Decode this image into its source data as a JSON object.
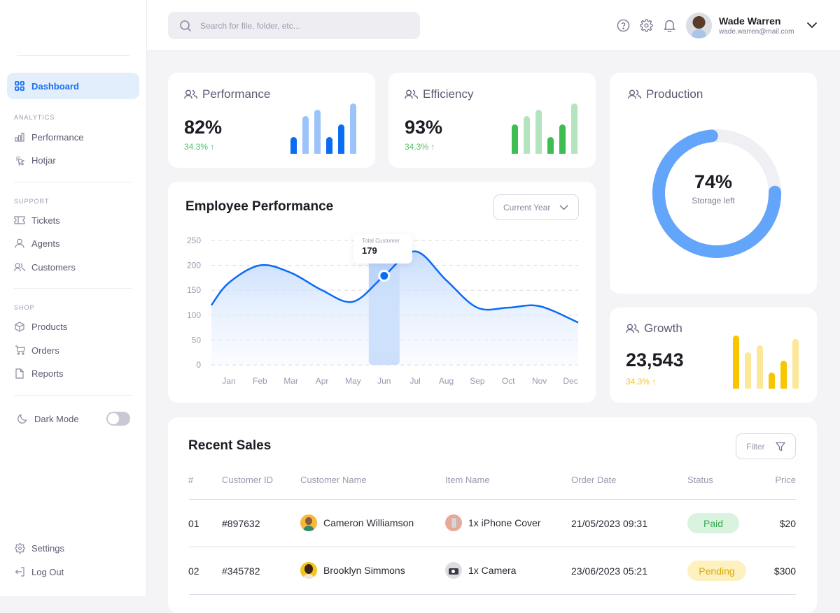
{
  "sidebar": {
    "active": {
      "label": "Dashboard",
      "icon": "grid-icon"
    },
    "sections": {
      "analytics": "ANALYTICS",
      "support": "SUPPORT",
      "shop": "SHOP"
    },
    "analytics_items": [
      {
        "label": "Performance",
        "icon": "bar-chart-icon"
      },
      {
        "label": "Hotjar",
        "icon": "cursor-click-icon"
      }
    ],
    "support_items": [
      {
        "label": "Tickets",
        "icon": "ticket-icon"
      },
      {
        "label": "Agents",
        "icon": "user-icon"
      },
      {
        "label": "Customers",
        "icon": "users-icon"
      }
    ],
    "shop_items": [
      {
        "label": "Products",
        "icon": "box-icon"
      },
      {
        "label": "Orders",
        "icon": "cart-icon"
      },
      {
        "label": "Reports",
        "icon": "file-icon"
      }
    ],
    "dark_mode": {
      "label": "Dark Mode",
      "enabled": false
    },
    "bottom_items": [
      {
        "label": "Settings",
        "icon": "gear-icon"
      },
      {
        "label": "Log Out",
        "icon": "logout-icon"
      }
    ]
  },
  "topbar": {
    "search_placeholder": "Search for file, folder, etc...",
    "user": {
      "name": "Wade Warren",
      "email": "wade.warren@mail.com"
    }
  },
  "cards": {
    "performance": {
      "title": "Performance",
      "value": "82%",
      "delta": "34.3% ↑",
      "bars": [
        0.33,
        0.75,
        0.87,
        0.33,
        0.58,
        1.0
      ],
      "colors": [
        "#0a6cf5",
        "#9cc4fb"
      ]
    },
    "efficiency": {
      "title": "Efficiency",
      "value": "93%",
      "delta": "34.3% ↑",
      "bars": [
        0.58,
        0.75,
        0.87,
        0.33,
        0.58,
        1.0
      ],
      "colors": [
        "#3fbd55",
        "#b3e4bd"
      ]
    },
    "production": {
      "title": "Production",
      "value": "74%",
      "subtitle": "Storage left",
      "progress_percent": 74
    },
    "growth": {
      "title": "Growth",
      "value": "23,543",
      "delta": "34.3% ↑",
      "bars": [
        1.0,
        0.69,
        0.82,
        0.3,
        0.52,
        0.93
      ],
      "colors": [
        "#f7c600",
        "#fde89a"
      ]
    }
  },
  "employee_performance": {
    "title": "Employee Performance",
    "period_select": "Current Year",
    "tooltip": {
      "label": "Total Customer",
      "value": "179"
    }
  },
  "chart_data": {
    "type": "area",
    "title": "Employee Performance",
    "xlabel": "",
    "ylabel": "",
    "categories": [
      "Jan",
      "Feb",
      "Mar",
      "Apr",
      "May",
      "Jun",
      "Jul",
      "Aug",
      "Sep",
      "Oct",
      "Nov",
      "Dec"
    ],
    "series": [
      {
        "name": "Total Customer",
        "values": [
          165,
          200,
          185,
          150,
          127,
          179,
          228,
          170,
          115,
          115,
          118,
          85
        ]
      }
    ],
    "yticks": [
      0,
      50,
      100,
      150,
      200,
      250
    ],
    "ylim": [
      0,
      250
    ],
    "grid": true,
    "highlight": {
      "category": "Jun",
      "value": 179
    }
  },
  "recent_sales": {
    "title": "Recent Sales",
    "filter_label": "Filter",
    "columns": [
      "#",
      "Customer ID",
      "Customer Name",
      "Item Name",
      "Order Date",
      "Status",
      "Price"
    ],
    "rows": [
      {
        "num": "01",
        "customer_id": "#897632",
        "customer_name": "Cameron Williamson",
        "item": "1x iPhone Cover",
        "date": "21/05/2023 09:31",
        "status": "Paid",
        "price": "$20"
      },
      {
        "num": "02",
        "customer_id": "#345782",
        "customer_name": "Brooklyn Simmons",
        "item": "1x Camera",
        "date": "23/06/2023 05:21",
        "status": "Pending",
        "price": "$300"
      }
    ]
  },
  "colors": {
    "accent": "#1a6ff0",
    "success": "#3fbd55",
    "warning": "#f7c600",
    "donut": "#62a5fb"
  }
}
